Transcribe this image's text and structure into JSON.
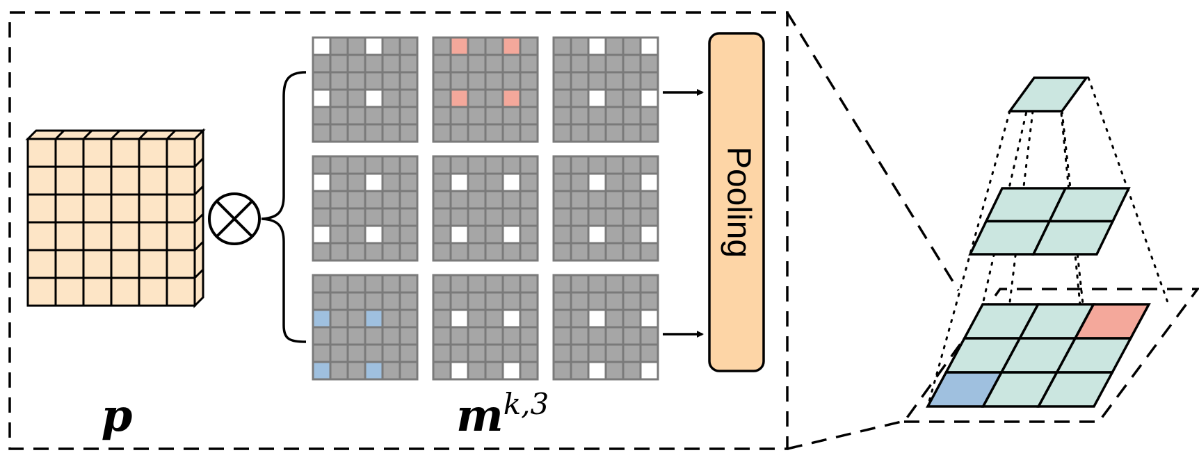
{
  "labels": {
    "input_symbol": "p",
    "mask_symbol": "m",
    "mask_superscript": "k,3",
    "operator_symbol": "⊗",
    "pooling": "Pooling"
  },
  "colors": {
    "input_fill": "#FDE5C6",
    "mask_gray": "#A6A6A6",
    "mask_border": "#7A7A7A",
    "active_white": "#FFFFFF",
    "active_red": "#F4A89B",
    "active_blue": "#9FC0DF",
    "pooling_fill": "#FDD5A6",
    "pyramid_fill": "#CBE6E0",
    "pyramid_red": "#F4A89B",
    "pyramid_blue": "#9FC0DF"
  },
  "input_grid": {
    "rows": 6,
    "cols": 6
  },
  "masks": {
    "rows": 3,
    "cols": 3,
    "grid_size": 6,
    "items": [
      {
        "active_color": "white",
        "active_cells": [
          [
            0,
            0
          ],
          [
            0,
            3
          ],
          [
            3,
            0
          ],
          [
            3,
            3
          ]
        ]
      },
      {
        "active_color": "red",
        "active_cells": [
          [
            0,
            1
          ],
          [
            0,
            4
          ],
          [
            3,
            1
          ],
          [
            3,
            4
          ]
        ]
      },
      {
        "active_color": "white",
        "active_cells": [
          [
            0,
            2
          ],
          [
            0,
            5
          ],
          [
            3,
            2
          ],
          [
            3,
            5
          ]
        ]
      },
      {
        "active_color": "white",
        "active_cells": [
          [
            1,
            0
          ],
          [
            1,
            3
          ],
          [
            4,
            0
          ],
          [
            4,
            3
          ]
        ]
      },
      {
        "active_color": "white",
        "active_cells": [
          [
            1,
            1
          ],
          [
            1,
            4
          ],
          [
            4,
            1
          ],
          [
            4,
            4
          ]
        ]
      },
      {
        "active_color": "white",
        "active_cells": [
          [
            1,
            2
          ],
          [
            1,
            5
          ],
          [
            4,
            2
          ],
          [
            4,
            5
          ]
        ]
      },
      {
        "active_color": "blue",
        "active_cells": [
          [
            2,
            0
          ],
          [
            2,
            3
          ],
          [
            5,
            0
          ],
          [
            5,
            3
          ]
        ]
      },
      {
        "active_color": "white",
        "active_cells": [
          [
            2,
            1
          ],
          [
            2,
            4
          ],
          [
            5,
            1
          ],
          [
            5,
            4
          ]
        ]
      },
      {
        "active_color": "white",
        "active_cells": [
          [
            2,
            2
          ],
          [
            2,
            5
          ],
          [
            5,
            2
          ],
          [
            5,
            5
          ]
        ]
      }
    ]
  },
  "pyramid": {
    "levels": [
      {
        "grid": 1,
        "highlights": []
      },
      {
        "grid": 2,
        "highlights": []
      },
      {
        "grid": 3,
        "highlights": [
          {
            "row": 0,
            "col": 2,
            "color": "red"
          },
          {
            "row": 2,
            "col": 0,
            "color": "blue"
          }
        ]
      }
    ]
  }
}
